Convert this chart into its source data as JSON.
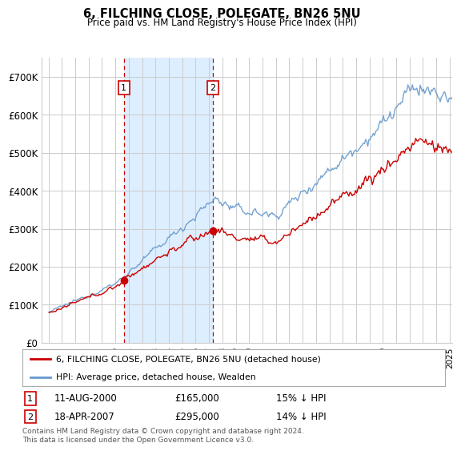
{
  "title": "6, FILCHING CLOSE, POLEGATE, BN26 5NU",
  "subtitle": "Price paid vs. HM Land Registry's House Price Index (HPI)",
  "background_color": "#ffffff",
  "plot_bg_color": "#ffffff",
  "sale1_label": "11-AUG-2000",
  "sale1_price": 165000,
  "sale1_pct": "15% ↓ HPI",
  "sale2_label": "18-APR-2007",
  "sale2_price": 295000,
  "sale2_pct": "14% ↓ HPI",
  "legend_label_red": "6, FILCHING CLOSE, POLEGATE, BN26 5NU (detached house)",
  "legend_label_blue": "HPI: Average price, detached house, Wealden",
  "footer": "Contains HM Land Registry data © Crown copyright and database right 2024.\nThis data is licensed under the Open Government Licence v3.0.",
  "red_color": "#cc0000",
  "blue_color": "#6699cc",
  "vshade_color": "#ddeeff",
  "annotation_box_color": "#ffffff",
  "annotation_border_color": "#cc0000",
  "grid_color": "#cccccc",
  "ylim": [
    0,
    750000
  ],
  "yticks": [
    0,
    100000,
    200000,
    300000,
    400000,
    500000,
    600000,
    700000
  ],
  "ytick_labels": [
    "£0",
    "£100K",
    "£200K",
    "£300K",
    "£400K",
    "£500K",
    "£600K",
    "£700K"
  ],
  "xmin": 1995.0,
  "xmax": 2025.2,
  "start_year": 1995,
  "end_year": 2025
}
